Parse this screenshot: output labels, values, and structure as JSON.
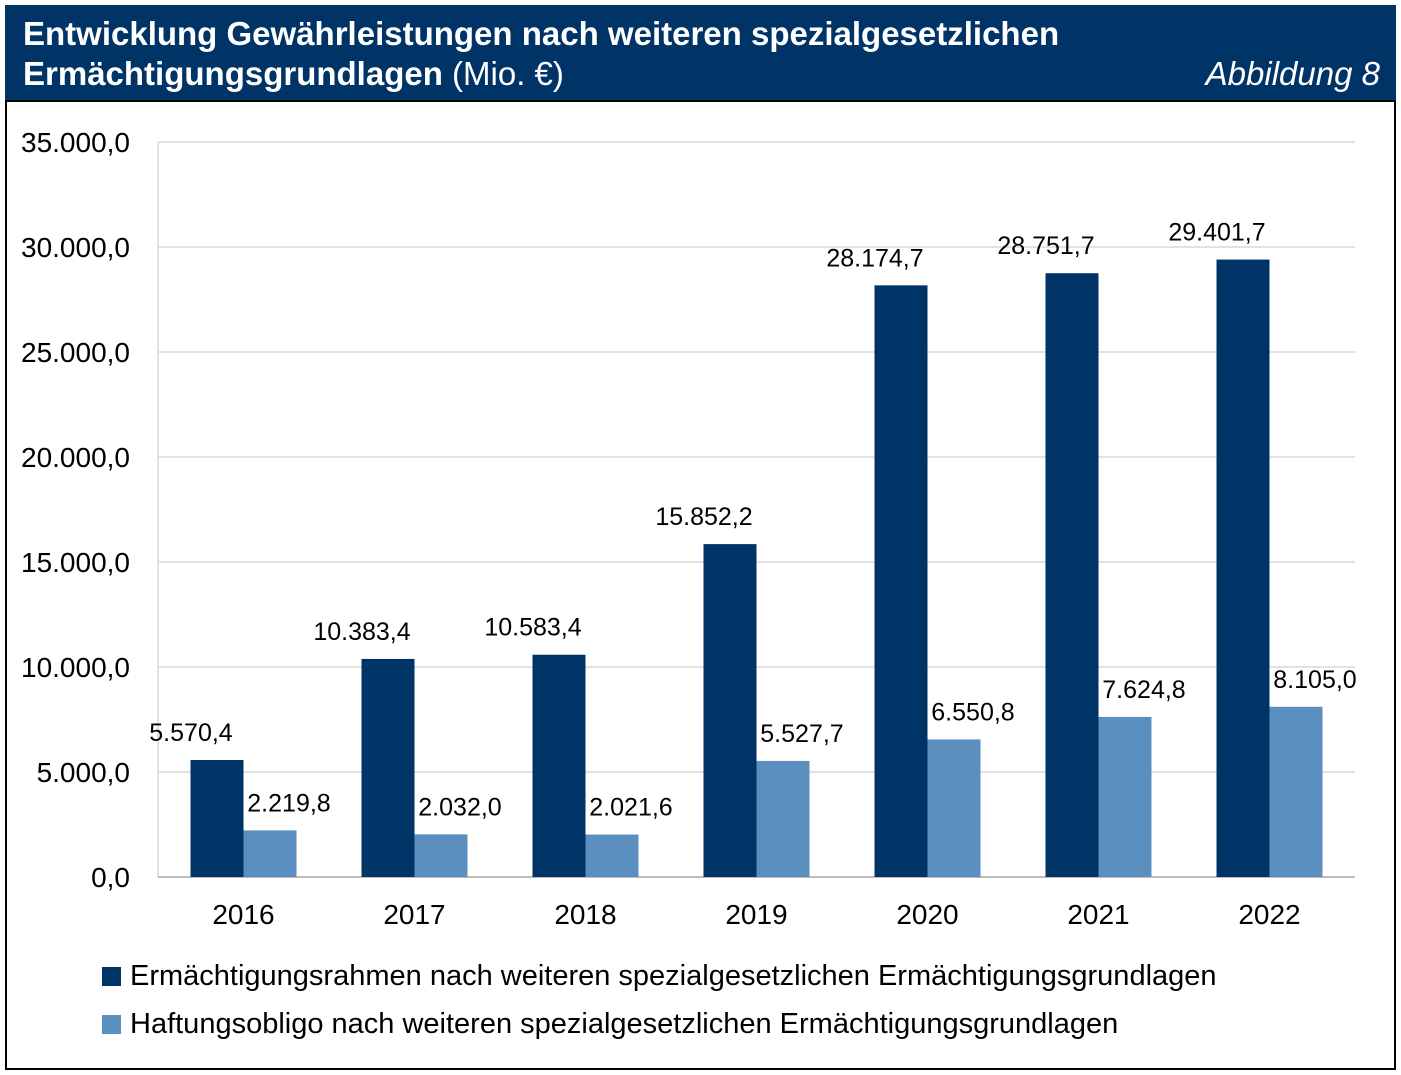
{
  "header": {
    "title_bold_line1": "Entwicklung Gewährleistungen nach weiteren spezialgesetzlichen",
    "title_bold_line2": "Ermächtigungsgrundlagen",
    "title_unit": " (Mio. €)",
    "figure_label": "Abbildung 8"
  },
  "colors": {
    "header_bg": "#003366",
    "series1": "#003366",
    "series2": "#5B8FBF",
    "grid": "#D9D9D9"
  },
  "chart_data": {
    "type": "bar",
    "title": "Entwicklung Gewährleistungen nach weiteren spezialgesetzlichen Ermächtigungsgrundlagen (Mio. €)",
    "xlabel": "",
    "ylabel": "",
    "ylim": [
      0,
      35000
    ],
    "yticks": [
      0,
      5000,
      10000,
      15000,
      20000,
      25000,
      30000,
      35000
    ],
    "ytick_labels": [
      "0,0",
      "5.000,0",
      "10.000,0",
      "15.000,0",
      "20.000,0",
      "25.000,0",
      "30.000,0",
      "35.000,0"
    ],
    "grid": true,
    "legend_position": "bottom",
    "categories": [
      "2016",
      "2017",
      "2018",
      "2019",
      "2020",
      "2021",
      "2022"
    ],
    "series": [
      {
        "name": "Ermächtigungsrahmen nach weiteren spezialgesetzlichen Ermächtigungsgrundlagen",
        "values": [
          5570.4,
          10383.4,
          10583.4,
          15852.2,
          28174.7,
          28751.7,
          29401.7
        ],
        "labels": [
          "5.570,4",
          "10.383,4",
          "10.583,4",
          "15.852,2",
          "28.174,7",
          "28.751,7",
          "29.401,7"
        ]
      },
      {
        "name": "Haftungsobligo nach weiteren spezialgesetzlichen Ermächtigungsgrundlagen",
        "values": [
          2219.8,
          2032.0,
          2021.6,
          5527.7,
          6550.8,
          7624.8,
          8105.0
        ],
        "labels": [
          "2.219,8",
          "2.032,0",
          "2.021,6",
          "5.527,7",
          "6.550,8",
          "7.624,8",
          "8.105,0"
        ]
      }
    ]
  }
}
